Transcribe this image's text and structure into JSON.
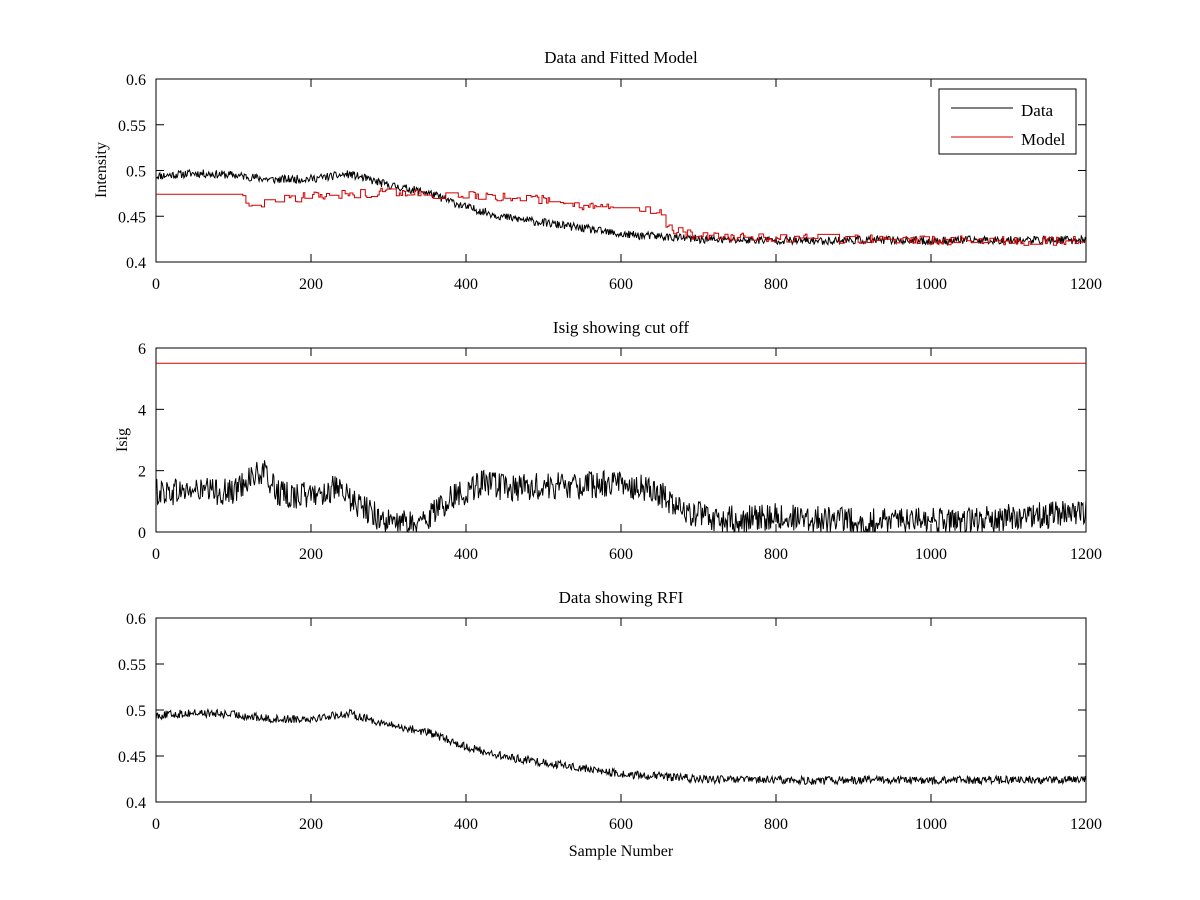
{
  "chart_data": [
    {
      "type": "line",
      "title": "Data and Fitted Model",
      "xlabel": "",
      "ylabel": "Intensity",
      "xlim": [
        0,
        1200
      ],
      "ylim": [
        0.4,
        0.6
      ],
      "xticks": [
        0,
        200,
        400,
        600,
        800,
        1000,
        1200
      ],
      "xtick_labels": [
        "0",
        "200",
        "400",
        "600",
        "800",
        "1000",
        "1200"
      ],
      "yticks": [
        0.4,
        0.45,
        0.5,
        0.55,
        0.6
      ],
      "ytick_labels": [
        "0.4",
        "0.45",
        "0.5",
        "0.55",
        "0.6"
      ],
      "grid": false,
      "legend": {
        "placement": "top-right",
        "entries": [
          "Data",
          "Model"
        ]
      },
      "series": [
        {
          "name": "Data",
          "color": "#000000",
          "x": [
            0,
            50,
            100,
            150,
            200,
            250,
            300,
            350,
            400,
            450,
            500,
            550,
            600,
            650,
            700,
            750,
            800,
            850,
            900,
            950,
            1000,
            1050,
            1100,
            1150,
            1200
          ],
          "y": [
            0.494,
            0.497,
            0.495,
            0.49,
            0.491,
            0.496,
            0.484,
            0.476,
            0.46,
            0.449,
            0.443,
            0.437,
            0.43,
            0.428,
            0.425,
            0.424,
            0.424,
            0.423,
            0.424,
            0.424,
            0.423,
            0.424,
            0.424,
            0.424,
            0.424
          ],
          "noise": 0.0045
        },
        {
          "name": "Model",
          "color": "#d40000",
          "x": [
            0,
            110,
            120,
            140,
            160,
            200,
            250,
            300,
            350,
            400,
            450,
            500,
            550,
            600,
            650,
            655,
            700,
            800,
            900,
            1000,
            1100,
            1200
          ],
          "y": [
            0.474,
            0.474,
            0.46,
            0.466,
            0.468,
            0.472,
            0.475,
            0.476,
            0.474,
            0.472,
            0.47,
            0.468,
            0.462,
            0.457,
            0.455,
            0.437,
            0.428,
            0.427,
            0.425,
            0.424,
            0.423,
            0.423
          ],
          "noise": 0.005
        }
      ]
    },
    {
      "type": "line",
      "title": "Isig showing cut off",
      "xlabel": "",
      "ylabel": "Isig",
      "xlim": [
        0,
        1200
      ],
      "ylim": [
        0,
        6
      ],
      "xticks": [
        0,
        200,
        400,
        600,
        800,
        1000,
        1200
      ],
      "xtick_labels": [
        "0",
        "200",
        "400",
        "600",
        "800",
        "1000",
        "1200"
      ],
      "yticks": [
        0,
        2,
        4,
        6
      ],
      "ytick_labels": [
        "0",
        "2",
        "4",
        "6"
      ],
      "grid": false,
      "series": [
        {
          "color": "#000000",
          "x": [
            0,
            50,
            100,
            120,
            140,
            160,
            200,
            230,
            260,
            300,
            340,
            380,
            420,
            460,
            500,
            550,
            600,
            640,
            680,
            720,
            800,
            900,
            1000,
            1060,
            1100,
            1200
          ],
          "y": [
            1.3,
            1.35,
            1.3,
            1.8,
            1.9,
            1.2,
            1.2,
            1.4,
            0.9,
            0.3,
            0.25,
            1.1,
            1.6,
            1.4,
            1.5,
            1.5,
            1.6,
            1.4,
            0.7,
            0.4,
            0.5,
            0.35,
            0.35,
            0.35,
            0.5,
            0.6
          ],
          "noise": 0.45
        },
        {
          "color": "#d40000",
          "x": [
            0,
            1200
          ],
          "y": [
            5.5,
            5.5
          ],
          "noise": 0
        }
      ]
    },
    {
      "type": "line",
      "title": "Data showing RFI",
      "xlabel": "Sample Number",
      "ylabel": "",
      "xlim": [
        0,
        1200
      ],
      "ylim": [
        0.4,
        0.6
      ],
      "xticks": [
        0,
        200,
        400,
        600,
        800,
        1000,
        1200
      ],
      "xtick_labels": [
        "0",
        "200",
        "400",
        "600",
        "800",
        "1000",
        "1200"
      ],
      "yticks": [
        0.4,
        0.45,
        0.5,
        0.55,
        0.6
      ],
      "ytick_labels": [
        "0.4",
        "0.45",
        "0.5",
        "0.55",
        "0.6"
      ],
      "grid": false,
      "series": [
        {
          "color": "#000000",
          "x": [
            0,
            50,
            100,
            150,
            200,
            250,
            300,
            350,
            400,
            450,
            500,
            550,
            600,
            650,
            700,
            750,
            800,
            850,
            900,
            950,
            1000,
            1050,
            1100,
            1150,
            1200
          ],
          "y": [
            0.494,
            0.497,
            0.495,
            0.49,
            0.491,
            0.496,
            0.484,
            0.476,
            0.46,
            0.449,
            0.443,
            0.437,
            0.43,
            0.428,
            0.425,
            0.424,
            0.424,
            0.423,
            0.424,
            0.424,
            0.423,
            0.424,
            0.424,
            0.424,
            0.424
          ],
          "noise": 0.0045
        }
      ]
    }
  ]
}
